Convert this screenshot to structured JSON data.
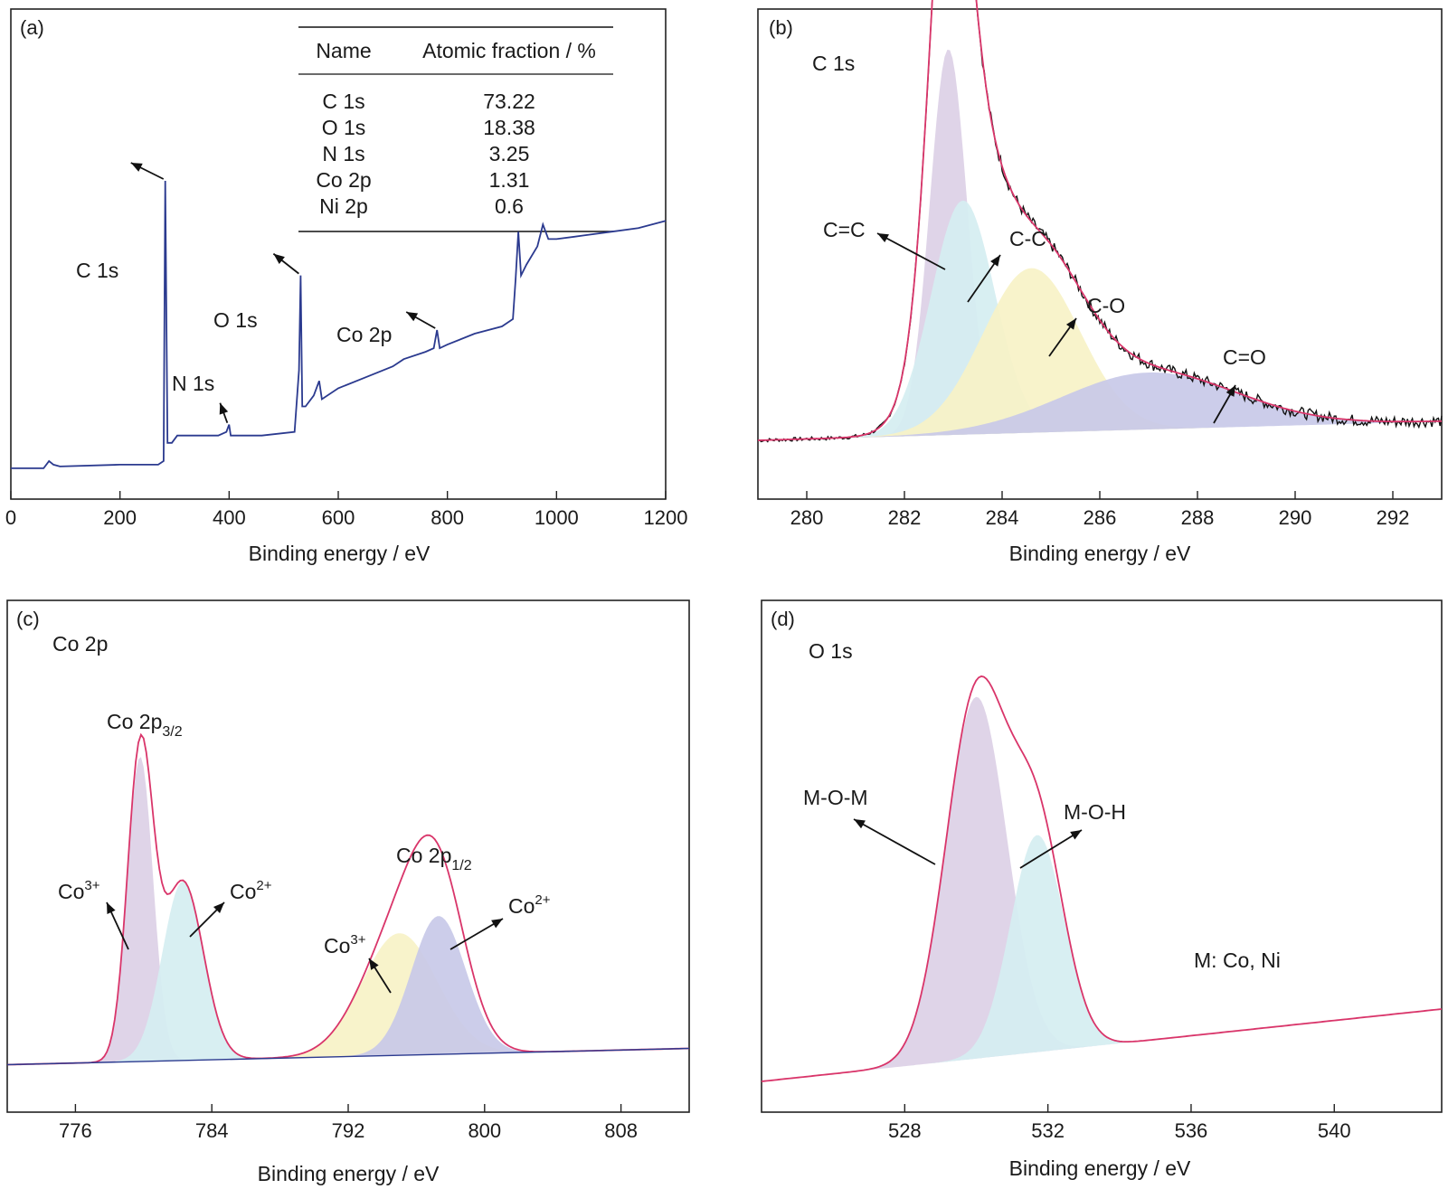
{
  "chart_data": [
    {
      "id": "a",
      "panel_label": "(a)",
      "type": "line",
      "xlabel": "Binding energy / eV",
      "ylabel": "",
      "xlim": [
        0,
        1200
      ],
      "x_ticks": [
        0,
        200,
        400,
        600,
        800,
        1000,
        1200
      ],
      "line_color": "#2b3a8f",
      "spectrum": [
        [
          0,
          0.03
        ],
        [
          60,
          0.03
        ],
        [
          70,
          0.05
        ],
        [
          78,
          0.04
        ],
        [
          90,
          0.035
        ],
        [
          200,
          0.04
        ],
        [
          270,
          0.04
        ],
        [
          280,
          0.05
        ],
        [
          283,
          0.82
        ],
        [
          287,
          0.1
        ],
        [
          295,
          0.1
        ],
        [
          305,
          0.12
        ],
        [
          330,
          0.12
        ],
        [
          380,
          0.12
        ],
        [
          395,
          0.13
        ],
        [
          400,
          0.15
        ],
        [
          403,
          0.12
        ],
        [
          460,
          0.12
        ],
        [
          520,
          0.13
        ],
        [
          528,
          0.3
        ],
        [
          531,
          0.56
        ],
        [
          534,
          0.2
        ],
        [
          540,
          0.2
        ],
        [
          555,
          0.23
        ],
        [
          565,
          0.27
        ],
        [
          570,
          0.22
        ],
        [
          600,
          0.25
        ],
        [
          650,
          0.28
        ],
        [
          700,
          0.31
        ],
        [
          720,
          0.33
        ],
        [
          760,
          0.35
        ],
        [
          775,
          0.36
        ],
        [
          781,
          0.41
        ],
        [
          786,
          0.36
        ],
        [
          800,
          0.37
        ],
        [
          850,
          0.4
        ],
        [
          900,
          0.42
        ],
        [
          920,
          0.44
        ],
        [
          925,
          0.55
        ],
        [
          930,
          0.68
        ],
        [
          935,
          0.56
        ],
        [
          945,
          0.59
        ],
        [
          965,
          0.64
        ],
        [
          975,
          0.7
        ],
        [
          985,
          0.66
        ],
        [
          1000,
          0.66
        ],
        [
          1050,
          0.67
        ],
        [
          1100,
          0.68
        ],
        [
          1150,
          0.69
        ],
        [
          1200,
          0.71
        ]
      ],
      "annotations": [
        {
          "text": "C 1s",
          "x": 283,
          "y": 0.82
        },
        {
          "text": "N 1s",
          "x": 400,
          "y": 0.15
        },
        {
          "text": "O 1s",
          "x": 531,
          "y": 0.56
        },
        {
          "text": "Co 2p",
          "x": 781,
          "y": 0.41
        }
      ],
      "table": {
        "headers": [
          "Name",
          "Atomic fraction / %"
        ],
        "rows": [
          [
            "C 1s",
            "73.22"
          ],
          [
            "O 1s",
            "18.38"
          ],
          [
            "N 1s",
            "3.25"
          ],
          [
            "Co 2p",
            "1.31"
          ],
          [
            "Ni 2p",
            "0.6"
          ]
        ]
      }
    },
    {
      "id": "b",
      "panel_label": "(b)",
      "title": "C 1s",
      "type": "area",
      "xlabel": "Binding energy / eV",
      "xlim": [
        279,
        293
      ],
      "x_ticks": [
        280,
        282,
        284,
        286,
        288,
        290,
        292
      ],
      "baseline": [
        [
          279,
          0.03
        ],
        [
          293,
          0.06
        ]
      ],
      "series": [
        {
          "name": "C=C",
          "center": 282.9,
          "height": 0.61,
          "width": 0.38,
          "color": "#dcd0e6"
        },
        {
          "name": "C-C",
          "center": 283.2,
          "height": 0.37,
          "width": 0.65,
          "color": "#d5eef1"
        },
        {
          "name": "C-O",
          "center": 284.6,
          "height": 0.26,
          "width": 1.0,
          "color": "#f7f2c7"
        },
        {
          "name": "C=O",
          "center": 287.0,
          "height": 0.09,
          "width": 1.8,
          "color": "#c8c9e8"
        }
      ],
      "envelope_color": "#d9356a",
      "raw_color": "#111111"
    },
    {
      "id": "c",
      "panel_label": "(c)",
      "title": "Co 2p",
      "type": "area",
      "xlabel": "Binding energy / eV",
      "xlim": [
        772,
        812
      ],
      "x_ticks": [
        776,
        784,
        792,
        800,
        808
      ],
      "baseline": [
        [
          772,
          0.01
        ],
        [
          812,
          0.05
        ]
      ],
      "series": [
        {
          "name": "Co3+",
          "peak": "Co 2p3/2",
          "center": 779.8,
          "height": 0.75,
          "width": 0.75,
          "color": "#dcd0e6"
        },
        {
          "name": "Co2+",
          "peak": "Co 2p3/2",
          "center": 782.3,
          "height": 0.44,
          "width": 1.2,
          "color": "#d5eef1"
        },
        {
          "name": "Co3+",
          "peak": "Co 2p1/2",
          "center": 795.0,
          "height": 0.3,
          "width": 2.2,
          "color": "#f7f2c7"
        },
        {
          "name": "Co2+",
          "peak": "Co 2p1/2",
          "center": 797.3,
          "height": 0.34,
          "width": 1.6,
          "color": "#c8c9e8"
        }
      ],
      "envelope_color": "#d9356a",
      "peak_labels": [
        {
          "main": "Co 2p",
          "sub": "3/2",
          "x": 780.3
        },
        {
          "main": "Co 2p",
          "sub": "1/2",
          "x": 795.5
        }
      ],
      "state_labels": [
        {
          "main": "Co",
          "sup": "3+",
          "x": 779.5
        },
        {
          "main": "Co",
          "sup": "2+",
          "x": 782.5
        },
        {
          "main": "Co",
          "sup": "3+",
          "x": 794.5
        },
        {
          "main": "Co",
          "sup": "2+",
          "x": 797.5
        }
      ]
    },
    {
      "id": "d",
      "panel_label": "(d)",
      "title": "O 1s",
      "type": "area",
      "xlabel": "Binding energy / eV",
      "xlim": [
        524,
        543
      ],
      "x_ticks": [
        528,
        532,
        536,
        540
      ],
      "baseline": [
        [
          524,
          0.0
        ],
        [
          543,
          0.2
        ]
      ],
      "series": [
        {
          "name": "M-O-M",
          "center": 530.0,
          "height": 1.0,
          "width": 0.85,
          "color": "#dcd0e6"
        },
        {
          "name": "M-O-H",
          "center": 531.7,
          "height": 0.6,
          "width": 0.75,
          "color": "#d5eef1"
        }
      ],
      "envelope_color": "#d9356a",
      "note": "M: Co, Ni"
    }
  ]
}
